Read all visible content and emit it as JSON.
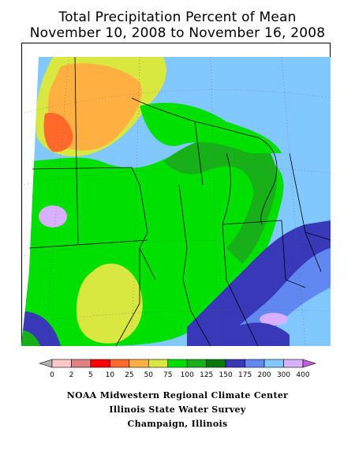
{
  "title_line1": "Total Precipitation Percent of Mean",
  "title_line2": "November 10, 2008 to November 16, 2008",
  "legend": {
    "labels": [
      "0",
      "2",
      "5",
      "10",
      "25",
      "50",
      "75",
      "100",
      "125",
      "150",
      "175",
      "200",
      "300",
      "400"
    ],
    "colors": [
      "#b0b0b0",
      "#ffc8c8",
      "#e08080",
      "#ff0000",
      "#ff6a2a",
      "#ffb040",
      "#d8e840",
      "#00e000",
      "#18b018",
      "#087808",
      "#3838b8",
      "#6088f0",
      "#80c8ff",
      "#d8b0ff",
      "#c060d8"
    ]
  },
  "credits": {
    "line1": "NOAA Midwestern Regional Climate Center",
    "line2": "Illinois State Water Survey",
    "line3": "Champaign, Illinois"
  }
}
